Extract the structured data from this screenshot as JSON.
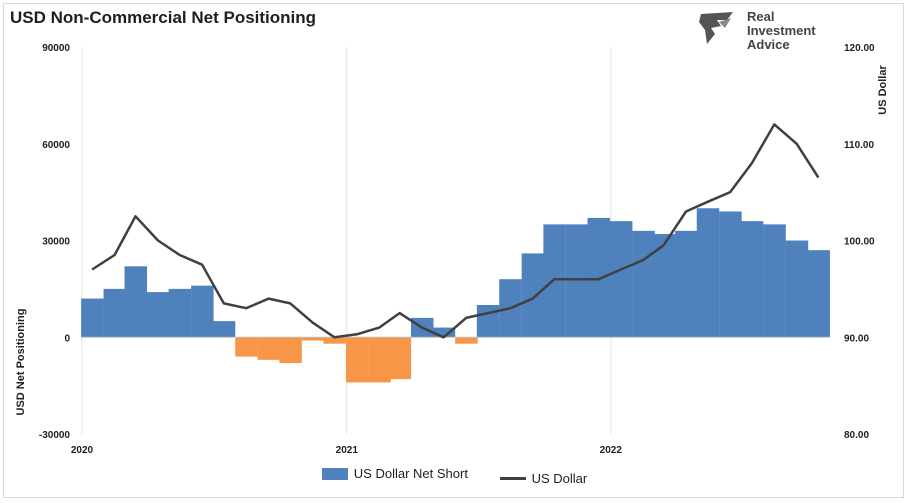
{
  "chart_data": {
    "title": "USD Non-Commercial Net Positioning",
    "type": "bar+line",
    "ylabel_left": "USD Net Positioning",
    "ylabel_right": "US Dollar",
    "ylim_left": [
      -30000,
      90000
    ],
    "ylim_right": [
      80,
      120
    ],
    "yticks_left": [
      "90000",
      "60000",
      "30000",
      "0",
      "-30000"
    ],
    "yticks_right": [
      "120.00",
      "110.00",
      "100.00",
      "90.00",
      "80.00"
    ],
    "xticks": [
      "2020",
      "2021",
      "2022"
    ],
    "grid": "vertical only",
    "colors": {
      "positive": "#4f81bd",
      "negative": "#f79646",
      "line": "#404040"
    },
    "series": [
      {
        "name": "US Dollar Net Short",
        "kind": "bar",
        "x": [
          "2020-01",
          "2020-02",
          "2020-03",
          "2020-04",
          "2020-05",
          "2020-06",
          "2020-07",
          "2020-08",
          "2020-09",
          "2020-10",
          "2020-11",
          "2020-12",
          "2021-01",
          "2021-02",
          "2021-03",
          "2021-04",
          "2021-05",
          "2021-06",
          "2021-07",
          "2021-08",
          "2021-09",
          "2021-10",
          "2021-11",
          "2021-12",
          "2022-01",
          "2022-02",
          "2022-03",
          "2022-04",
          "2022-05",
          "2022-06",
          "2022-07",
          "2022-08",
          "2022-09",
          "2022-10"
        ],
        "values": [
          12000,
          15000,
          22000,
          14000,
          15000,
          16000,
          5000,
          -6000,
          -7000,
          -8000,
          -1000,
          -2000,
          -14000,
          -14000,
          -13000,
          6000,
          3000,
          -2000,
          10000,
          18000,
          26000,
          35000,
          35000,
          37000,
          36000,
          33000,
          32000,
          33000,
          40000,
          39000,
          36000,
          35000,
          30000,
          27000
        ]
      },
      {
        "name": "US Dollar",
        "kind": "line",
        "x": [
          "2020-01",
          "2020-02",
          "2020-03",
          "2020-04",
          "2020-05",
          "2020-06",
          "2020-07",
          "2020-08",
          "2020-09",
          "2020-10",
          "2020-11",
          "2020-12",
          "2021-01",
          "2021-02",
          "2021-03",
          "2021-04",
          "2021-05",
          "2021-06",
          "2021-07",
          "2021-08",
          "2021-09",
          "2021-10",
          "2021-11",
          "2021-12",
          "2022-01",
          "2022-02",
          "2022-03",
          "2022-04",
          "2022-05",
          "2022-06",
          "2022-07",
          "2022-08",
          "2022-09",
          "2022-10"
        ],
        "values": [
          97.0,
          98.5,
          102.5,
          100.0,
          98.5,
          97.5,
          93.5,
          93.0,
          94.0,
          93.5,
          91.5,
          90.0,
          90.3,
          91.0,
          92.5,
          91.0,
          90.0,
          92.0,
          92.5,
          93.0,
          94.0,
          96.0,
          96.0,
          96.0,
          97.0,
          98.0,
          99.5,
          103.0,
          104.0,
          105.0,
          108.0,
          112.0,
          110.0,
          106.5
        ]
      }
    ]
  },
  "logo": {
    "line1": "Real",
    "line2": "Investment",
    "line3": "Advice"
  },
  "legend": {
    "bar_label": "US Dollar Net Short",
    "line_label": "US Dollar"
  }
}
